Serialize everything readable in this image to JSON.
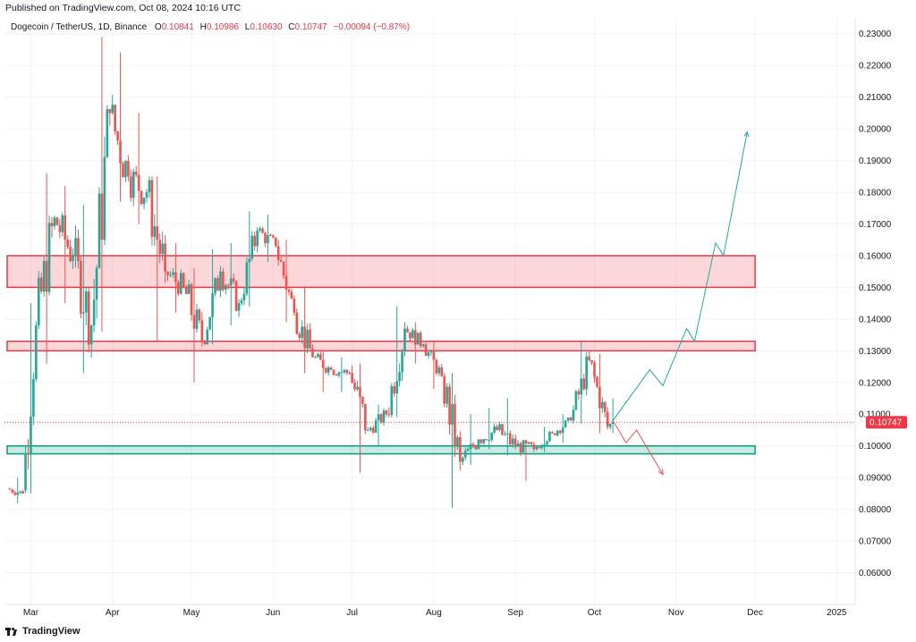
{
  "header": {
    "published": "Published on TradingView.com, Oct 08, 2024 10:16 UTC",
    "symbol": "Dogecoin / TetherUS, 1D, Binance",
    "o_label": "O",
    "o_value": "0.10841",
    "h_label": "H",
    "h_value": "0.10986",
    "l_label": "L",
    "l_value": "0.10630",
    "c_label": "C",
    "c_value": "0.10747",
    "change": "−0.00094 (−0.87%)"
  },
  "footer": {
    "brand": "TradingView",
    "logo_icon": "tradingview-logo-icon"
  },
  "colors": {
    "up": "#26a69a",
    "down": "#ef5350",
    "zone_red": "#f23645",
    "zone_green": "#089981",
    "last": "#f23645"
  },
  "chart_data": {
    "type": "candlestick",
    "title": "Dogecoin / TetherUS, 1D, Binance",
    "y_axis": {
      "min": 0.05,
      "max": 0.235,
      "ticks": [
        "0.06000",
        "0.07000",
        "0.08000",
        "0.09000",
        "0.10000",
        "0.11000",
        "0.12000",
        "0.13000",
        "0.14000",
        "0.15000",
        "0.16000",
        "0.17000",
        "0.18000",
        "0.19000",
        "0.20000",
        "0.21000",
        "0.22000",
        "0.23000"
      ],
      "position": "right"
    },
    "x_axis": {
      "start": "2024-02-20",
      "end": "2025-01-08",
      "ticks": [
        {
          "label": "Mar",
          "date": "2024-03-01"
        },
        {
          "label": "Apr",
          "date": "2024-04-01"
        },
        {
          "label": "May",
          "date": "2024-05-01"
        },
        {
          "label": "Jun",
          "date": "2024-06-01"
        },
        {
          "label": "Jul",
          "date": "2024-07-01"
        },
        {
          "label": "Aug",
          "date": "2024-08-01"
        },
        {
          "label": "Sep",
          "date": "2024-09-01"
        },
        {
          "label": "Oct",
          "date": "2024-10-01"
        },
        {
          "label": "Nov",
          "date": "2024-11-01"
        },
        {
          "label": "Dec",
          "date": "2024-12-01"
        },
        {
          "label": "2025",
          "date": "2025-01-01"
        }
      ]
    },
    "grid": true,
    "last_price": "0.10747",
    "zones": [
      {
        "name": "resistance-upper",
        "y_low": 0.15,
        "y_high": 0.16,
        "color": "red",
        "x_start": "2024-02-20",
        "x_end": "2024-12-01"
      },
      {
        "name": "resistance-lower",
        "y_low": 0.13,
        "y_high": 0.133,
        "color": "red",
        "x_start": "2024-02-20",
        "x_end": "2024-12-01"
      },
      {
        "name": "support",
        "y_low": 0.0975,
        "y_high": 0.1,
        "color": "green",
        "x_start": "2024-02-20",
        "x_end": "2024-12-01"
      }
    ],
    "projections": [
      {
        "name": "bullish-path",
        "color": "green",
        "points": [
          [
            "2024-10-08",
            0.108
          ],
          [
            "2024-10-22",
            0.124
          ],
          [
            "2024-10-27",
            0.119
          ],
          [
            "2024-11-05",
            0.137
          ],
          [
            "2024-11-08",
            0.133
          ],
          [
            "2024-11-16",
            0.164
          ],
          [
            "2024-11-19",
            0.16
          ],
          [
            "2024-11-28",
            0.199
          ]
        ]
      },
      {
        "name": "bearish-path",
        "color": "red",
        "points": [
          [
            "2024-10-08",
            0.108
          ],
          [
            "2024-10-13",
            0.101
          ],
          [
            "2024-10-17",
            0.105
          ],
          [
            "2024-10-27",
            0.091
          ]
        ]
      }
    ],
    "candles_weekly": [
      {
        "d": "2024-02-22",
        "o": 0.0865,
        "h": 0.09,
        "l": 0.082,
        "c": 0.085
      },
      {
        "d": "2024-02-28",
        "o": 0.086,
        "h": 0.145,
        "l": 0.085,
        "c": 0.138
      },
      {
        "d": "2024-03-04",
        "o": 0.138,
        "h": 0.186,
        "l": 0.126,
        "c": 0.172
      },
      {
        "d": "2024-03-11",
        "o": 0.172,
        "h": 0.182,
        "l": 0.145,
        "c": 0.16
      },
      {
        "d": "2024-03-18",
        "o": 0.16,
        "h": 0.176,
        "l": 0.123,
        "c": 0.138
      },
      {
        "d": "2024-03-25",
        "o": 0.138,
        "h": 0.229,
        "l": 0.136,
        "c": 0.205
      },
      {
        "d": "2024-04-01",
        "o": 0.205,
        "h": 0.224,
        "l": 0.177,
        "c": 0.185
      },
      {
        "d": "2024-04-08",
        "o": 0.185,
        "h": 0.205,
        "l": 0.17,
        "c": 0.18
      },
      {
        "d": "2024-04-15",
        "o": 0.18,
        "h": 0.185,
        "l": 0.133,
        "c": 0.155
      },
      {
        "d": "2024-04-22",
        "o": 0.155,
        "h": 0.164,
        "l": 0.142,
        "c": 0.15
      },
      {
        "d": "2024-04-29",
        "o": 0.15,
        "h": 0.156,
        "l": 0.12,
        "c": 0.133
      },
      {
        "d": "2024-05-06",
        "o": 0.133,
        "h": 0.162,
        "l": 0.132,
        "c": 0.155
      },
      {
        "d": "2024-05-13",
        "o": 0.155,
        "h": 0.164,
        "l": 0.138,
        "c": 0.145
      },
      {
        "d": "2024-05-20",
        "o": 0.145,
        "h": 0.174,
        "l": 0.144,
        "c": 0.168
      },
      {
        "d": "2024-05-27",
        "o": 0.168,
        "h": 0.173,
        "l": 0.158,
        "c": 0.163
      },
      {
        "d": "2024-06-03",
        "o": 0.163,
        "h": 0.165,
        "l": 0.139,
        "c": 0.142
      },
      {
        "d": "2024-06-10",
        "o": 0.142,
        "h": 0.15,
        "l": 0.123,
        "c": 0.128
      },
      {
        "d": "2024-06-17",
        "o": 0.128,
        "h": 0.13,
        "l": 0.117,
        "c": 0.124
      },
      {
        "d": "2024-06-24",
        "o": 0.124,
        "h": 0.128,
        "l": 0.117,
        "c": 0.123
      },
      {
        "d": "2024-07-01",
        "o": 0.123,
        "h": 0.126,
        "l": 0.0915,
        "c": 0.105
      },
      {
        "d": "2024-07-08",
        "o": 0.105,
        "h": 0.113,
        "l": 0.1,
        "c": 0.11
      },
      {
        "d": "2024-07-15",
        "o": 0.11,
        "h": 0.144,
        "l": 0.109,
        "c": 0.137
      },
      {
        "d": "2024-07-22",
        "o": 0.137,
        "h": 0.139,
        "l": 0.126,
        "c": 0.132
      },
      {
        "d": "2024-07-29",
        "o": 0.132,
        "h": 0.133,
        "l": 0.118,
        "c": 0.122
      },
      {
        "d": "2024-08-05",
        "o": 0.122,
        "h": 0.123,
        "l": 0.0805,
        "c": 0.095
      },
      {
        "d": "2024-08-12",
        "o": 0.095,
        "h": 0.11,
        "l": 0.094,
        "c": 0.102
      },
      {
        "d": "2024-08-19",
        "o": 0.102,
        "h": 0.112,
        "l": 0.099,
        "c": 0.105
      },
      {
        "d": "2024-08-26",
        "o": 0.105,
        "h": 0.115,
        "l": 0.097,
        "c": 0.1
      },
      {
        "d": "2024-09-02",
        "o": 0.1,
        "h": 0.102,
        "l": 0.089,
        "c": 0.099
      },
      {
        "d": "2024-09-09",
        "o": 0.099,
        "h": 0.106,
        "l": 0.098,
        "c": 0.104
      },
      {
        "d": "2024-09-16",
        "o": 0.104,
        "h": 0.11,
        "l": 0.101,
        "c": 0.108
      },
      {
        "d": "2024-09-23",
        "o": 0.108,
        "h": 0.133,
        "l": 0.107,
        "c": 0.127
      },
      {
        "d": "2024-09-30",
        "o": 0.127,
        "h": 0.129,
        "l": 0.104,
        "c": 0.106
      },
      {
        "d": "2024-10-07",
        "o": 0.106,
        "h": 0.115,
        "l": 0.104,
        "c": 0.1075
      }
    ]
  }
}
